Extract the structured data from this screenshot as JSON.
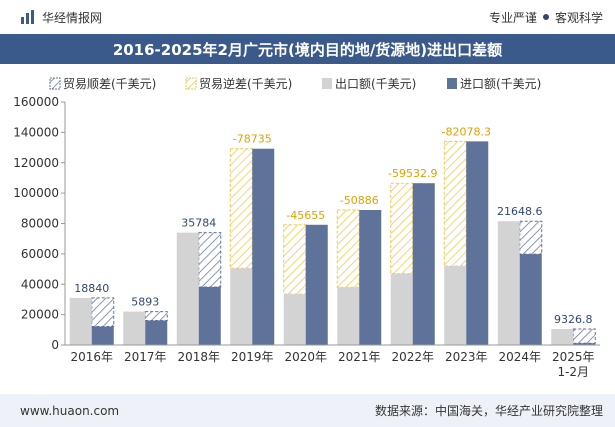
{
  "header": {
    "brand": "华经情报网",
    "tag1": "专业严谨",
    "tag2": "客观科学"
  },
  "title": "2016-2025年2月广元市(境内目的地/货源地)进出口差额",
  "legend": {
    "surplus": "贸易顺差(千美元)",
    "deficit": "贸易逆差(千美元)",
    "export": "出口额(千美元)",
    "import": "进口额(千美元)"
  },
  "colors": {
    "export": "#d3d3d3",
    "import": "#5f7299",
    "surplus_stroke": "#5f7299",
    "deficit_stroke": "#f2c74a",
    "label_surplus": "#2f4873",
    "label_deficit": "#e0a100"
  },
  "chart_data": {
    "type": "bar",
    "categories": [
      "2016年",
      "2017年",
      "2018年",
      "2019年",
      "2020年",
      "2021年",
      "2022年",
      "2023年",
      "2024年",
      "2025年\n1-2月"
    ],
    "series": [
      {
        "name": "出口额(千美元)",
        "values": [
          31000,
          22000,
          74000,
          50500,
          33500,
          38000,
          47000,
          52000,
          81500,
          10500
        ]
      },
      {
        "name": "进口额(千美元)",
        "values": [
          12160,
          16107,
          38216,
          129235,
          79155,
          88886,
          106533,
          134078,
          59851,
          1173
        ]
      }
    ],
    "balance": [
      18840,
      5893,
      35784,
      -78735,
      -45655,
      -50886,
      -59532.9,
      -82078.3,
      21648.6,
      9326.8
    ],
    "balance_labels": [
      "18840",
      "5893",
      "35784",
      "-78735",
      "-45655",
      "-50886",
      "-59532.9",
      "-82078.3",
      "21648.6",
      "9326.8"
    ],
    "yticks": [
      "0",
      "20000",
      "40000",
      "60000",
      "80000",
      "100000",
      "120000",
      "140000",
      "160000"
    ],
    "ylim": [
      0,
      160000
    ]
  },
  "footer": {
    "website": "www.huaon.com",
    "source": "数据来源：中国海关，华经产业研究院整理"
  }
}
